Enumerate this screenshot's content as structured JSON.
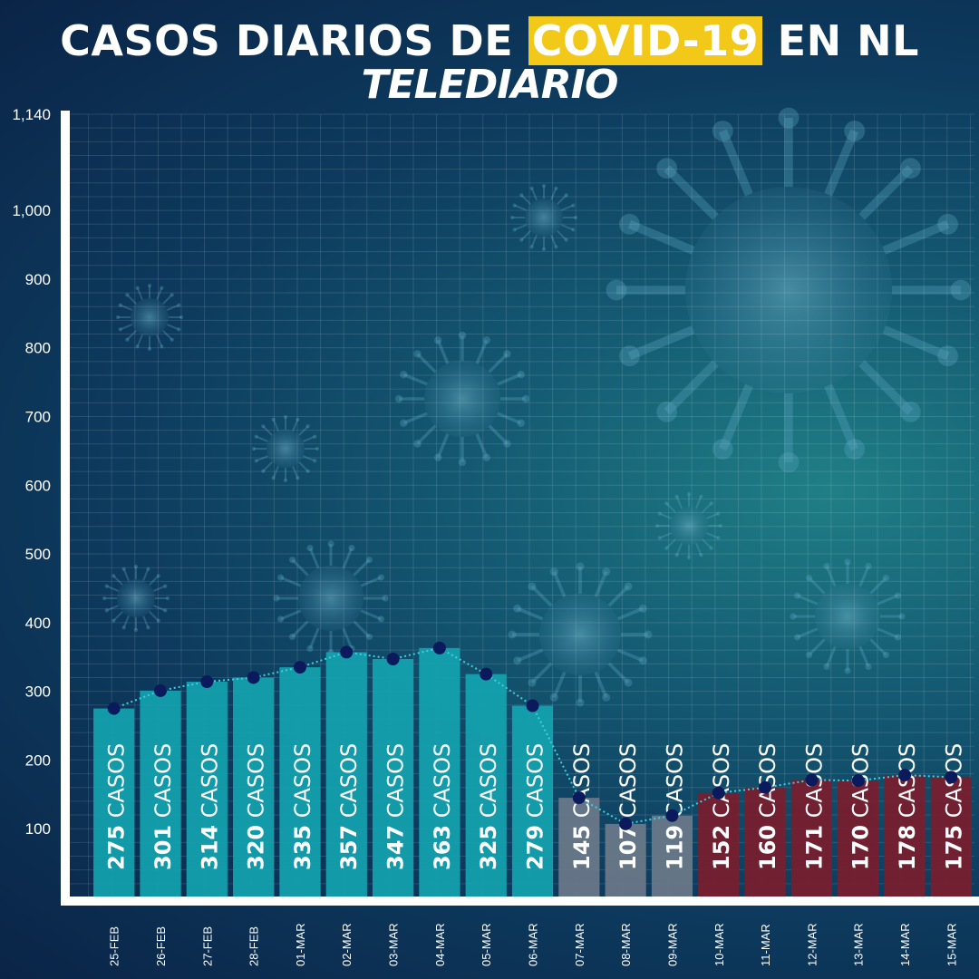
{
  "header": {
    "title_pre": "CASOS DIARIOS DE ",
    "title_highlight": "COVID-19",
    "title_post": " EN NL",
    "brand": "TELEDIARIO"
  },
  "colors": {
    "title_highlight_bg": "#f2c919",
    "bar_teal": "#13a3b0",
    "bar_grey": "#6b7a8a",
    "bar_red": "#7a1d2e",
    "line_dot": "#0a1a5c",
    "line": "#3fd0e0"
  },
  "chart_data": {
    "type": "bar",
    "categories": [
      "25-FEB",
      "26-FEB",
      "27-FEB",
      "28-FEB",
      "01-MAR",
      "02-MAR",
      "03-MAR",
      "04-MAR",
      "05-MAR",
      "06-MAR",
      "07-MAR",
      "08-MAR",
      "09-MAR",
      "10-MAR",
      "11-MAR",
      "12-MAR",
      "13-MAR",
      "14-MAR",
      "15-MAR"
    ],
    "values": [
      275,
      301,
      314,
      320,
      335,
      357,
      347,
      363,
      325,
      279,
      145,
      107,
      119,
      152,
      160,
      171,
      170,
      178,
      175
    ],
    "value_suffix": "CASOS",
    "bar_colors": [
      "teal",
      "teal",
      "teal",
      "teal",
      "teal",
      "teal",
      "teal",
      "teal",
      "teal",
      "teal",
      "grey",
      "grey",
      "grey",
      "red",
      "red",
      "red",
      "red",
      "red",
      "red"
    ],
    "y_ticks": [
      100,
      200,
      300,
      400,
      500,
      600,
      700,
      800,
      900,
      1000,
      1140
    ],
    "y_tick_labels": [
      "100",
      "200",
      "300",
      "400",
      "500",
      "600",
      "700",
      "800",
      "900",
      "1,000",
      "1,140"
    ],
    "overlay": "dotted line with markers at bar tops",
    "grid": true
  }
}
